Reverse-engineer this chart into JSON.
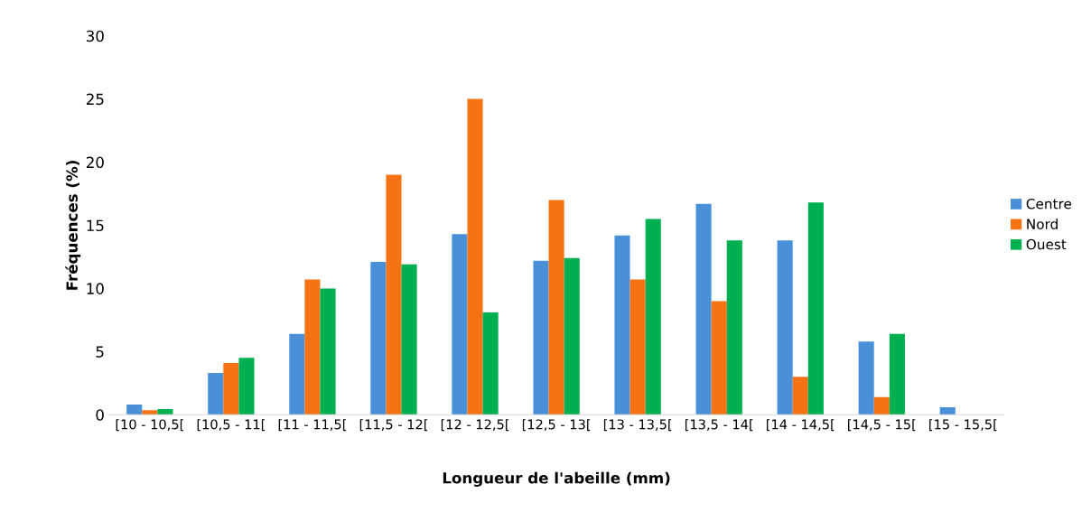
{
  "chart_data": {
    "type": "bar",
    "xlabel": "Longueur de l'abeille (mm)",
    "ylabel": "Fréquences (%)",
    "categories": [
      "[10 - 10,5[",
      "[10,5 - 11[",
      "[11 - 11,5[",
      "[11,5 - 12[",
      "[12 - 12,5[",
      "[12,5 - 13[",
      "[13 - 13,5[",
      "[13,5 - 14[",
      "[14 - 14,5[",
      "[14,5 - 15[",
      "[15 - 15,5["
    ],
    "series": [
      {
        "name": "Centre",
        "color": "#4a90d9",
        "values": [
          0.8,
          3.3,
          6.4,
          12.1,
          14.3,
          12.2,
          14.2,
          16.7,
          13.8,
          5.8,
          0.6
        ]
      },
      {
        "name": "Nord",
        "color": "#f57315",
        "values": [
          0.35,
          4.1,
          10.7,
          19.0,
          25.0,
          17.0,
          10.7,
          9.0,
          3.0,
          1.4,
          0
        ]
      },
      {
        "name": "Ouest",
        "color": "#00b050",
        "values": [
          0.45,
          4.5,
          10.0,
          11.9,
          8.1,
          12.4,
          15.5,
          13.8,
          16.8,
          6.4,
          0
        ]
      }
    ],
    "ylim": [
      0,
      30
    ],
    "yticks": [
      0,
      5,
      10,
      15,
      20,
      25,
      30
    ],
    "grid": false,
    "legend": "right"
  }
}
